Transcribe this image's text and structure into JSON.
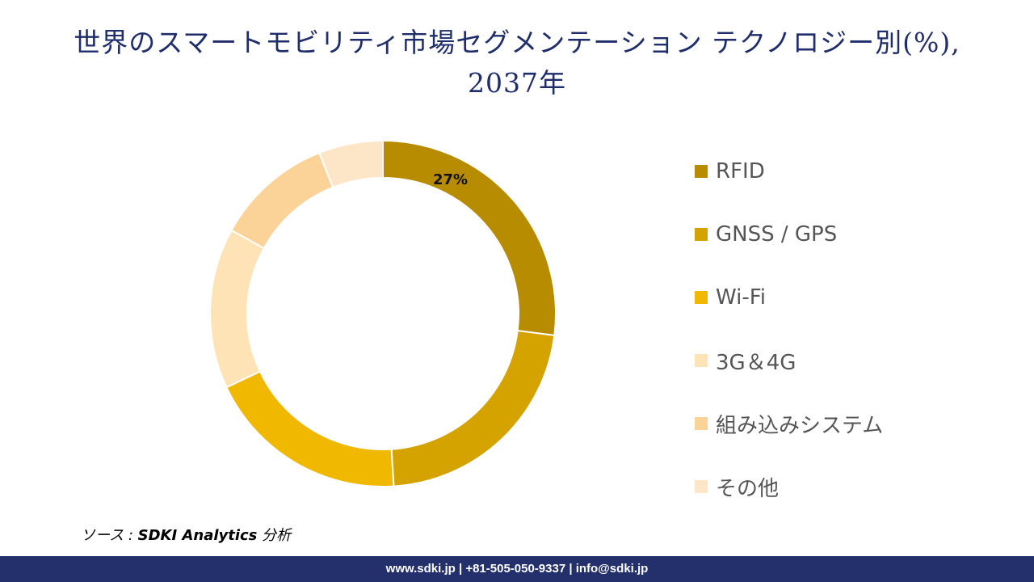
{
  "title": {
    "line1": "世界のスマートモビリティ市場セグメンテーション テクノロジー別(%),",
    "line2": "2037年"
  },
  "chart_data": {
    "type": "pie",
    "variant": "donut",
    "title": "世界のスマートモビリティ市場セグメンテーション テクノロジー別(%), 2037年",
    "categories": [
      "RFID",
      "GNSS / GPS",
      "Wi-Fi",
      "3G＆4G",
      "組み込みシステム",
      "その他"
    ],
    "values": [
      27,
      22,
      19,
      15,
      11,
      6
    ],
    "colors": [
      "#b88c00",
      "#d4a300",
      "#f0b800",
      "#fde3b5",
      "#fbd398",
      "#fde6c8"
    ],
    "data_labels": [
      {
        "index": 0,
        "text": "27%"
      }
    ],
    "legend_position": "right"
  },
  "source": {
    "prefix": "ソース :",
    "name": "SDKI Analytics",
    "suffix": "分析"
  },
  "footer": {
    "text": "www.sdki.jp | +81-505-050-9337 | info@sdki.jp"
  }
}
